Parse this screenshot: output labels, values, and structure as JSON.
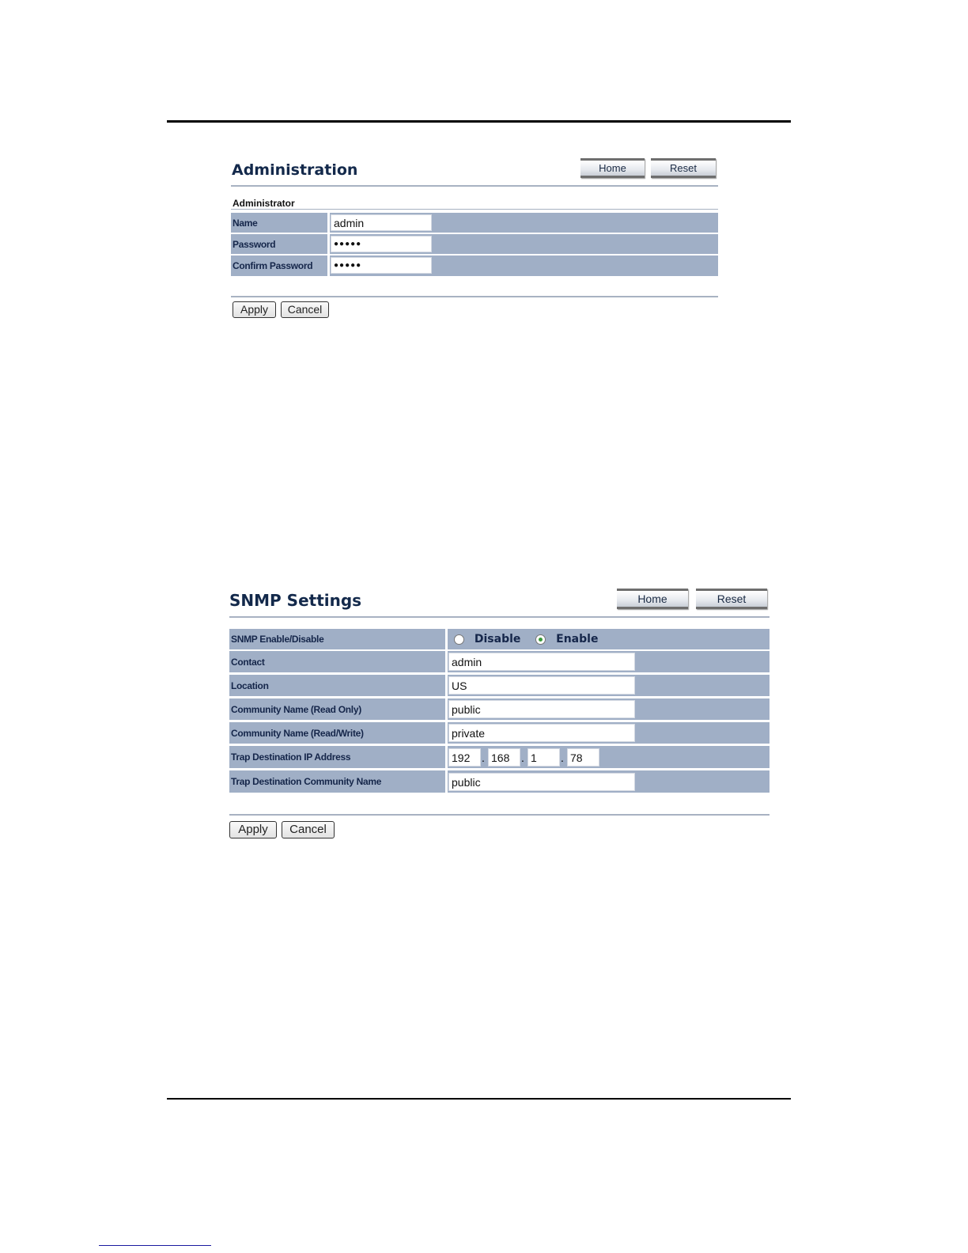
{
  "admin_panel": {
    "title": "Administration",
    "nav": {
      "home": "Home",
      "reset": "Reset"
    },
    "section": "Administrator",
    "rows": [
      {
        "label": "Name",
        "value": "admin"
      },
      {
        "label": "Password",
        "value": "●●●●●"
      },
      {
        "label": "Confirm Password",
        "value": "●●●●●"
      }
    ],
    "apply": "Apply",
    "cancel": "Cancel"
  },
  "snmp_panel": {
    "title": "SNMP Settings",
    "nav": {
      "home": "Home",
      "reset": "Reset"
    },
    "enable_row": {
      "label": "SNMP Enable/Disable",
      "options": [
        "Disable",
        "Enable"
      ],
      "selected": "Enable"
    },
    "rows": [
      {
        "label": "Contact",
        "value": "admin"
      },
      {
        "label": "Location",
        "value": "US"
      },
      {
        "label": "Community Name (Read Only)",
        "value": "public"
      },
      {
        "label": "Community Name (Read/Write)",
        "value": "private"
      }
    ],
    "trap_ip": {
      "label": "Trap Destination IP Address",
      "octets": [
        "192",
        "168",
        "1",
        "78"
      ],
      "dot": "."
    },
    "trap_community": {
      "label": "Trap Destination Community Name",
      "value": "public"
    },
    "apply": "Apply",
    "cancel": "Cancel"
  },
  "colors": {
    "row_bg": "#a0afc6",
    "title": "#13294b",
    "footer_link": "#1a1aa0"
  }
}
